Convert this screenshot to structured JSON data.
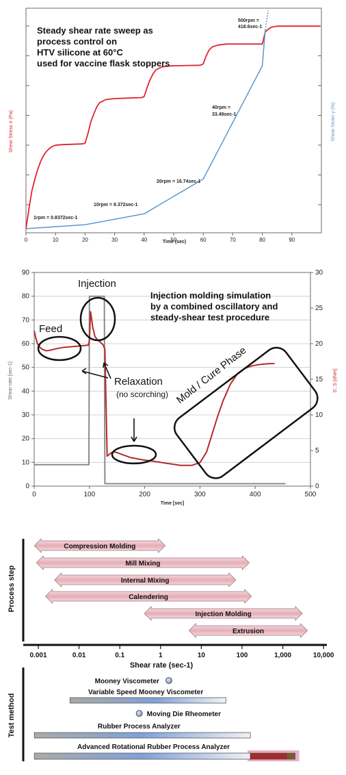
{
  "chart_data": [
    {
      "type": "line",
      "title_lines": [
        "Steady shear rate sweep as",
        "process control on",
        "HTV silicone at 60°C",
        "used for vaccine flask stoppers"
      ],
      "xlabel": "Time (sec)",
      "ylabel_left": "Shear Stress σ (Pa)",
      "ylabel_right": "Shear Strain γ (%)",
      "xlim": [
        0,
        100
      ],
      "x_ticks": [
        0,
        10,
        20,
        30,
        40,
        50,
        60,
        70,
        80,
        90
      ],
      "series": [
        {
          "key": "stress",
          "color": "#e0232b",
          "rel_ylim": [
            0,
            100
          ],
          "points": [
            [
              0,
              0
            ],
            [
              1,
              10
            ],
            [
              2,
              19
            ],
            [
              3,
              25
            ],
            [
              4,
              30
            ],
            [
              5,
              34
            ],
            [
              6,
              37
            ],
            [
              7,
              39
            ],
            [
              8,
              40.5
            ],
            [
              9,
              41.5
            ],
            [
              10,
              42
            ],
            [
              12,
              42.3
            ],
            [
              15,
              42.5
            ],
            [
              19,
              42.7
            ],
            [
              20,
              43
            ],
            [
              21,
              48
            ],
            [
              22,
              54
            ],
            [
              23,
              58
            ],
            [
              24,
              61.5
            ],
            [
              25,
              63.5
            ],
            [
              27,
              65
            ],
            [
              30,
              65.5
            ],
            [
              35,
              65.8
            ],
            [
              39,
              66
            ],
            [
              40,
              66.5
            ],
            [
              41,
              71
            ],
            [
              42,
              75
            ],
            [
              43,
              78
            ],
            [
              44,
              80
            ],
            [
              46,
              81.5
            ],
            [
              49,
              82
            ],
            [
              55,
              82.2
            ],
            [
              59,
              82.3
            ],
            [
              60,
              83
            ],
            [
              61,
              87
            ],
            [
              62,
              90
            ],
            [
              63,
              91.5
            ],
            [
              65,
              92.5
            ],
            [
              68,
              93
            ],
            [
              75,
              93
            ],
            [
              80,
              93
            ],
            [
              81,
              99
            ],
            [
              82,
              100.5
            ],
            [
              83,
              101.5
            ],
            [
              85,
              102
            ],
            [
              90,
              102
            ],
            [
              99.5,
              102
            ]
          ]
        },
        {
          "key": "strain",
          "color": "#5b97cf",
          "rel_ylim": [
            0,
            100
          ],
          "points": [
            [
              0,
              0
            ],
            [
              20,
              2
            ],
            [
              40,
              7.5
            ],
            [
              60,
              25
            ],
            [
              80,
              82
            ],
            [
              81,
              100
            ]
          ]
        },
        {
          "key": "strain_extension",
          "color": "#5b97cf",
          "dashed": true,
          "rel_ylim": [
            0,
            100
          ],
          "points": [
            [
              81,
              100
            ],
            [
              82,
              110
            ]
          ]
        }
      ],
      "annotations": [
        {
          "text": "1rpm = 0.8372sec-1"
        },
        {
          "text": "10rpm = 8.372sec-1"
        },
        {
          "text": "20rpm = 16.74sec-1"
        },
        {
          "lines": [
            "40rpm =",
            "33.49sec-1"
          ]
        },
        {
          "lines": [
            "500rpm =",
            "418.6sec-1"
          ]
        }
      ]
    },
    {
      "type": "line",
      "title_lines": [
        "Injection molding simulation",
        "by a combined oscillatory and",
        "steady-shear test procedure"
      ],
      "xlabel": "Time [sec]",
      "ylabel_left": "Shear rate [sec-1]",
      "ylabel_right": "S', S [dNm]",
      "xlim": [
        0,
        500
      ],
      "ylim_left": [
        0,
        90
      ],
      "ylim_right": [
        0,
        30
      ],
      "x_ticks": [
        0,
        100,
        200,
        300,
        400,
        500
      ],
      "y_ticks_left": [
        0,
        10,
        20,
        30,
        40,
        50,
        60,
        70,
        80,
        90
      ],
      "y_ticks_right": [
        0,
        5,
        10,
        15,
        20,
        25,
        30
      ],
      "series": [
        {
          "key": "shear_rate",
          "axis": "left",
          "color": "#8a8a8a",
          "points": [
            [
              0,
              9
            ],
            [
              99,
              9
            ],
            [
              100,
              80
            ],
            [
              127,
              80
            ],
            [
              128,
              1
            ],
            [
              455,
              1
            ]
          ]
        },
        {
          "key": "torque",
          "axis": "right",
          "color": "#b52a2a",
          "points": [
            [
              0,
              21.8
            ],
            [
              3,
              20.8
            ],
            [
              6,
              20
            ],
            [
              10,
              19.5
            ],
            [
              15,
              19.2
            ],
            [
              22,
              19
            ],
            [
              30,
              19.1
            ],
            [
              40,
              19.3
            ],
            [
              55,
              19.5
            ],
            [
              70,
              19.6
            ],
            [
              85,
              19.7
            ],
            [
              98,
              19.8
            ],
            [
              100,
              20.5
            ],
            [
              102,
              24.5
            ],
            [
              104,
              23.5
            ],
            [
              106,
              22.3
            ],
            [
              110,
              21
            ],
            [
              115,
              20.5
            ],
            [
              120,
              20.2
            ],
            [
              125,
              19.8
            ],
            [
              128,
              19.2
            ],
            [
              130,
              12
            ],
            [
              132,
              4.2
            ],
            [
              135,
              4.4
            ],
            [
              140,
              4.7
            ],
            [
              145,
              4.8
            ],
            [
              150,
              4.7
            ],
            [
              160,
              4.4
            ],
            [
              175,
              4
            ],
            [
              195,
              3.7
            ],
            [
              215,
              3.5
            ],
            [
              240,
              3.2
            ],
            [
              265,
              2.9
            ],
            [
              285,
              2.9
            ],
            [
              300,
              3.3
            ],
            [
              312,
              4.8
            ],
            [
              322,
              7.3
            ],
            [
              332,
              9.8
            ],
            [
              342,
              12
            ],
            [
              355,
              14.3
            ],
            [
              368,
              15.8
            ],
            [
              380,
              16.5
            ],
            [
              395,
              16.9
            ],
            [
              410,
              17.1
            ],
            [
              425,
              17.2
            ],
            [
              435,
              17.2
            ]
          ]
        }
      ],
      "annotations": [
        {
          "text": "Injection"
        },
        {
          "text": "Feed"
        },
        {
          "text": "Relaxation"
        },
        {
          "text": "(no scorching)"
        },
        {
          "text": "Mold / Cure Phase"
        }
      ]
    },
    {
      "type": "range",
      "xlabel": "Shear rate (sec-1)",
      "x_scale": "log",
      "xlim": [
        0.001,
        10000
      ],
      "x_ticks": [
        0.001,
        0.01,
        0.1,
        1,
        10,
        100,
        1000,
        10000
      ],
      "x_tick_labels": [
        "0.001",
        "0.01",
        "0.1",
        "1",
        "10",
        "100",
        "1,000",
        "10,000"
      ],
      "groups": [
        {
          "label": "Process step",
          "items": [
            {
              "label": "Compression Molding",
              "min": 0.0008,
              "max": 1.3
            },
            {
              "label": "Mill Mixing",
              "min": 0.0009,
              "max": 150
            },
            {
              "label": "Internal Mixing",
              "min": 0.0025,
              "max": 70
            },
            {
              "label": "Calendering",
              "min": 0.0015,
              "max": 170
            },
            {
              "label": "Injection Molding",
              "min": 0.4,
              "max": 3000
            },
            {
              "label": "Extrusion",
              "min": 5,
              "max": 4000
            }
          ]
        },
        {
          "label": "Test method",
          "items": [
            {
              "label": "Mooney Viscometer",
              "point": 1.6
            },
            {
              "label": "Variable Speed  Mooney Viscometer",
              "min": 0.006,
              "max": 40
            },
            {
              "label": "Moving Die Rheometer",
              "point": 0.3
            },
            {
              "label": "Rubber Process Analyzer",
              "min": 0.0008,
              "max": 160
            },
            {
              "label": "Advanced Rotational Rubber Process Analyzer",
              "min": 0.0008,
              "max": 2000
            }
          ]
        }
      ]
    }
  ]
}
